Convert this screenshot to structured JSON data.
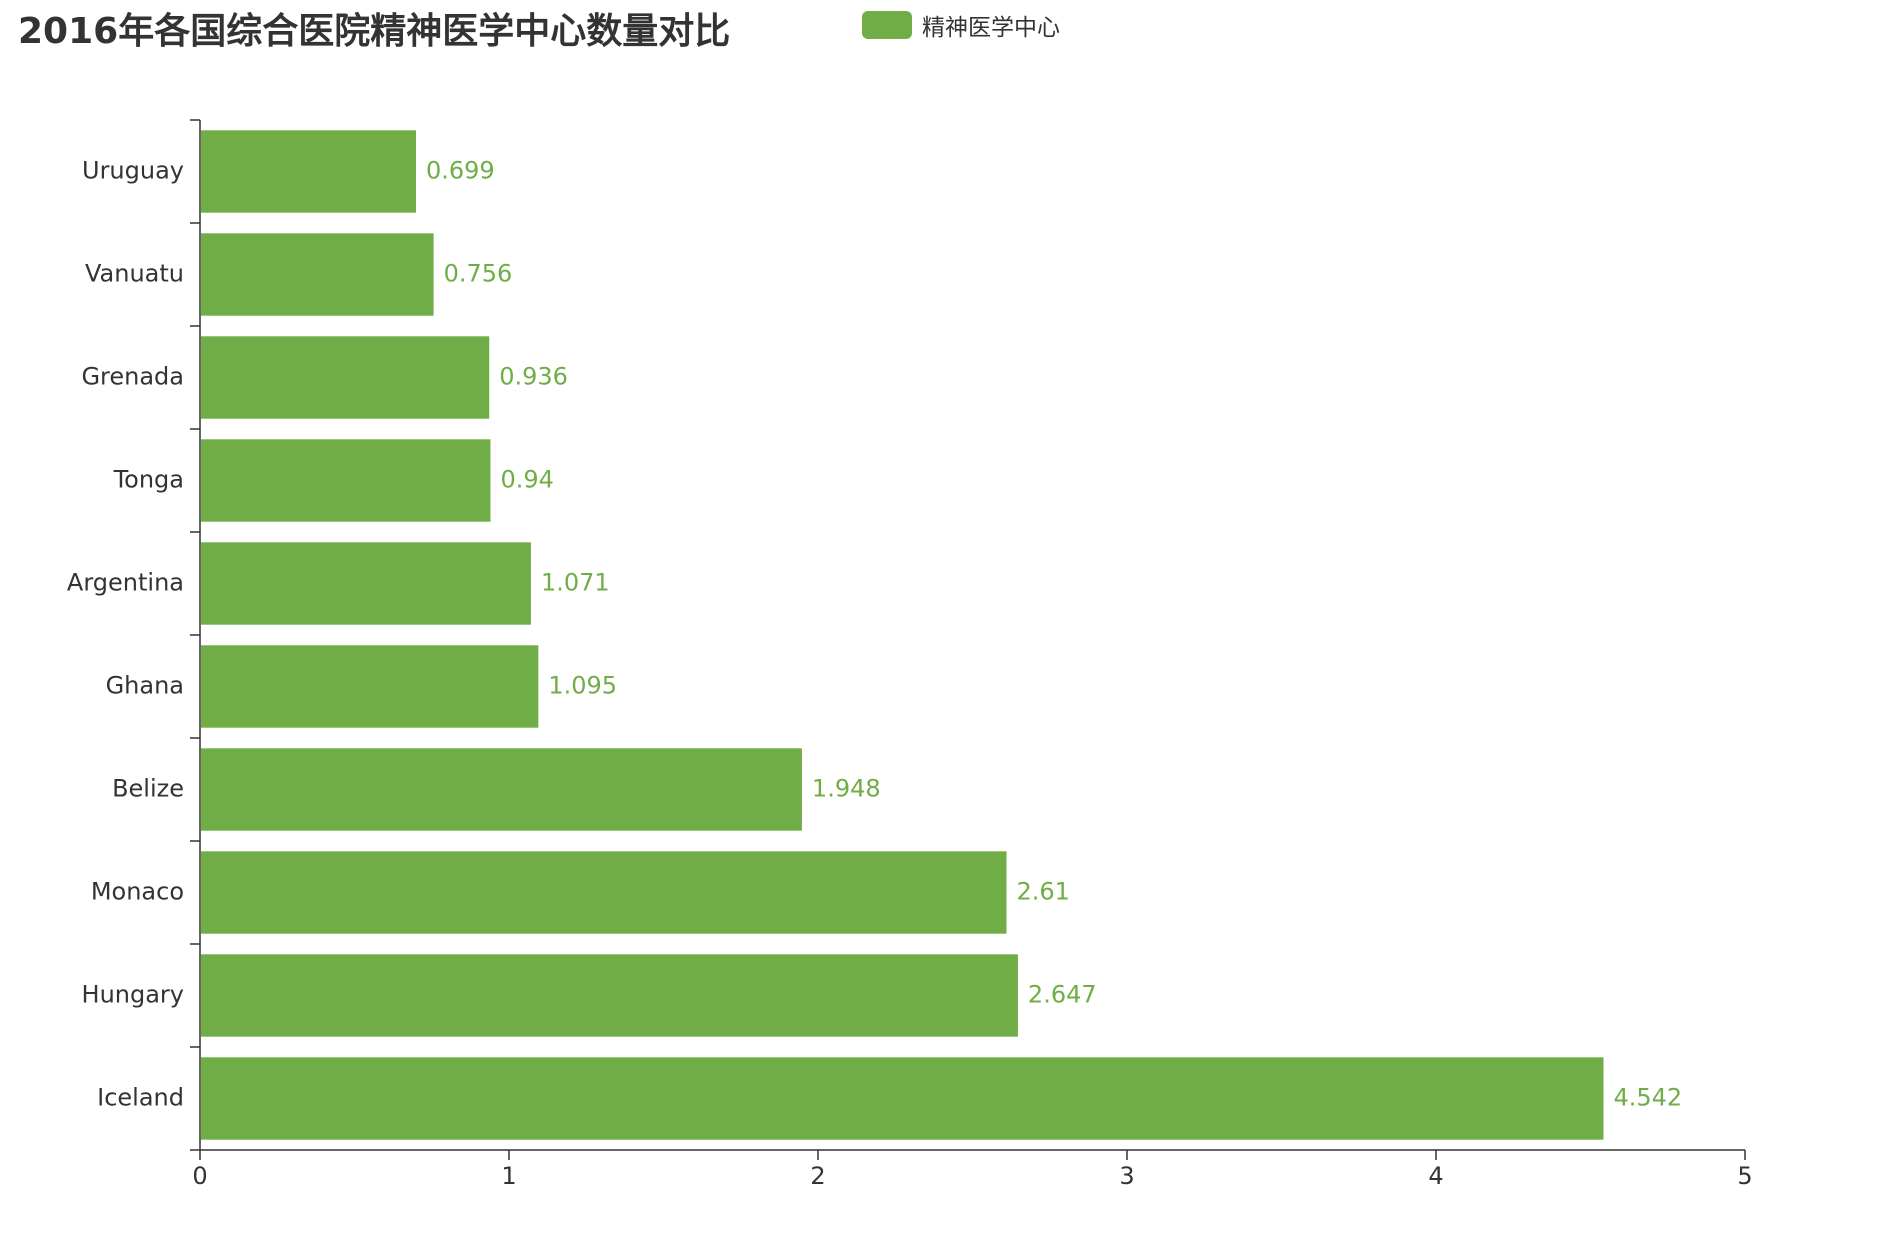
{
  "chart_data": {
    "type": "bar",
    "orientation": "horizontal",
    "title": "2016年各国综合医院精神医学中心数量对比",
    "categories": [
      "Uruguay",
      "Vanuatu",
      "Grenada",
      "Tonga",
      "Argentina",
      "Ghana",
      "Belize",
      "Monaco",
      "Hungary",
      "Iceland"
    ],
    "series": [
      {
        "name": "精神医学中心",
        "values": [
          0.699,
          0.756,
          0.936,
          0.94,
          1.071,
          1.095,
          1.948,
          2.61,
          2.647,
          4.542
        ],
        "labels": [
          "0.699",
          "0.756",
          "0.936",
          "0.94",
          "1.071",
          "1.095",
          "1.948",
          "2.61",
          "2.647",
          "4.542"
        ]
      }
    ],
    "xlim": [
      0,
      5
    ],
    "xticks": [
      "0",
      "1",
      "2",
      "3",
      "4",
      "5"
    ],
    "xlabel": "",
    "ylabel": "",
    "grid": false,
    "legend_position": "top-center",
    "colors": {
      "bar": "#70ad47",
      "value_label": "#70ad47",
      "axis": "#333333",
      "title": "#333333"
    }
  }
}
